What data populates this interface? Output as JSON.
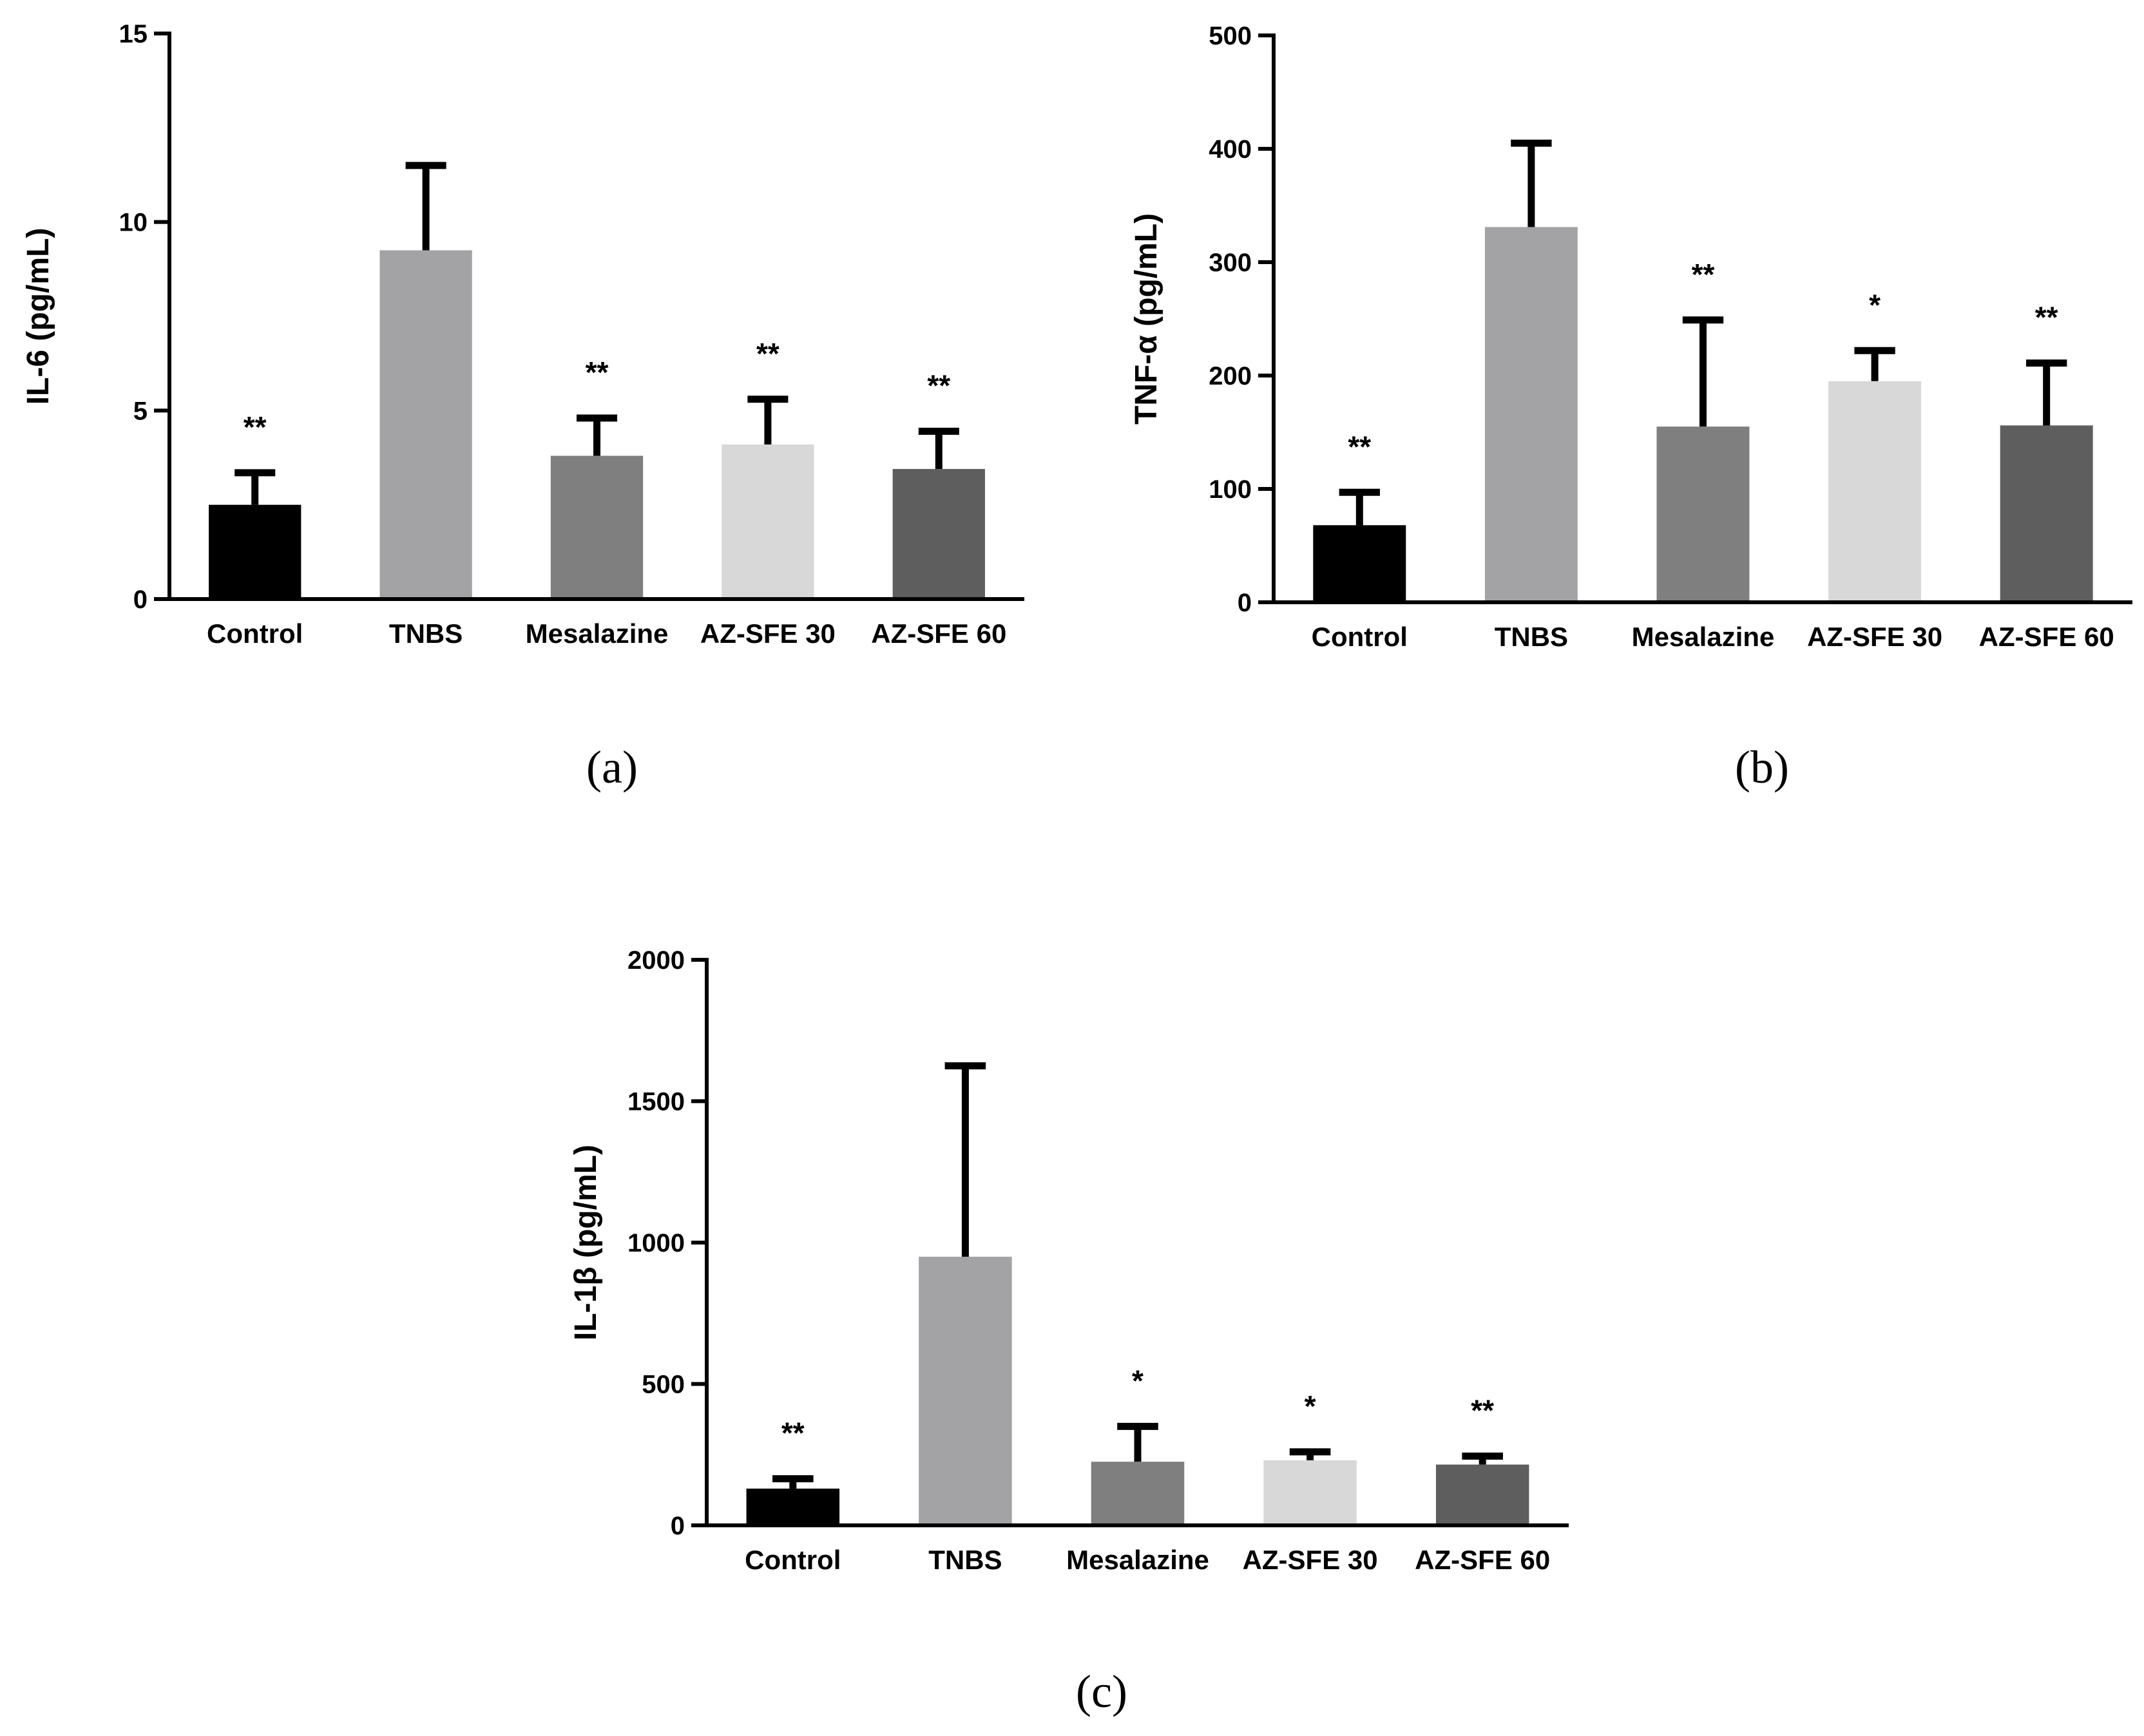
{
  "chart_data": [
    {
      "type": "bar",
      "panel_label": "(a)",
      "ylabel": "IL-6 (pg/mL)",
      "ylim": [
        0,
        15
      ],
      "yticks": [
        0,
        5,
        10,
        15
      ],
      "categories": [
        "Control",
        "TNBS",
        "Mesalazine",
        "AZ-SFE 30",
        "AZ-SFE 60"
      ],
      "values": [
        2.5,
        9.25,
        3.8,
        4.1,
        3.45
      ],
      "errors": [
        0.85,
        2.25,
        1.0,
        1.2,
        1.0
      ],
      "significance": [
        "**",
        "",
        "**",
        "**",
        "**"
      ],
      "colors": [
        "#000000",
        "#a3a3a6",
        "#7f7f7f",
        "#d8d8d8",
        "#5e5e5e"
      ]
    },
    {
      "type": "bar",
      "panel_label": "(b)",
      "ylabel": "TNF-α (pg/mL)",
      "ylim": [
        0,
        500
      ],
      "yticks": [
        0,
        100,
        200,
        300,
        400,
        500
      ],
      "categories": [
        "Control",
        "TNBS",
        "Mesalazine",
        "AZ-SFE 30",
        "AZ-SFE 60"
      ],
      "values": [
        68,
        331,
        155,
        195,
        156
      ],
      "errors": [
        29,
        74,
        94,
        27,
        55
      ],
      "significance": [
        "**",
        "",
        "**",
        "*",
        "**"
      ],
      "colors": [
        "#000000",
        "#a3a3a6",
        "#7f7f7f",
        "#d8d8d8",
        "#5e5e5e"
      ]
    },
    {
      "type": "bar",
      "panel_label": "(c)",
      "ylabel": "IL-1β (pg/mL)",
      "ylim": [
        0,
        2000
      ],
      "yticks": [
        0,
        500,
        1000,
        1500,
        2000
      ],
      "categories": [
        "Control",
        "TNBS",
        "Mesalazine",
        "AZ-SFE 30",
        "AZ-SFE 60"
      ],
      "values": [
        130,
        950,
        225,
        230,
        215
      ],
      "errors": [
        35,
        675,
        125,
        30,
        30
      ],
      "significance": [
        "**",
        "",
        "*",
        "*",
        "**"
      ],
      "colors": [
        "#000000",
        "#a3a3a6",
        "#7f7f7f",
        "#d8d8d8",
        "#5e5e5e"
      ]
    }
  ]
}
